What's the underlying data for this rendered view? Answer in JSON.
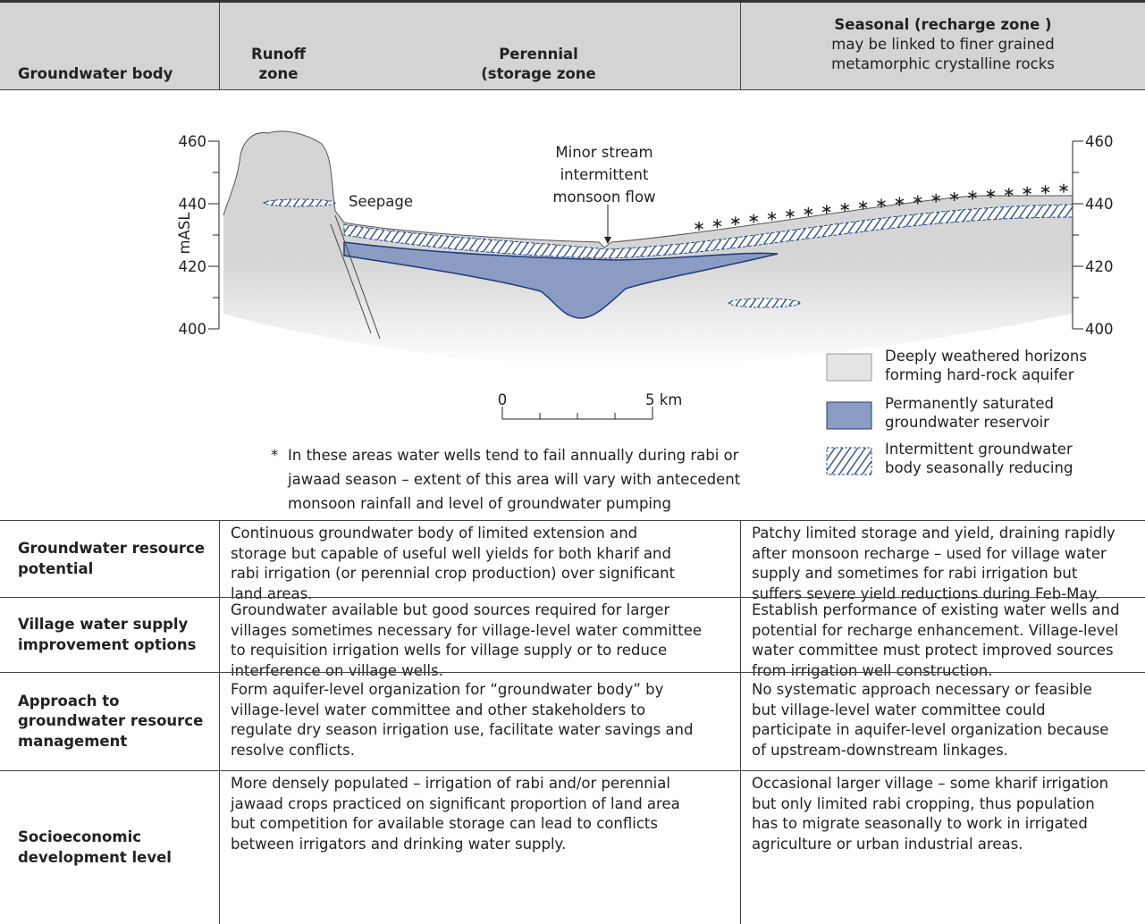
{
  "header": {
    "row_label": "Groundwater body",
    "runoff_zone": [
      "Runoff",
      "zone"
    ],
    "perennial_zone": [
      "Perennial",
      "(storage zone"
    ],
    "seasonal_zone": {
      "title": "Seasonal (recharge zone )",
      "note": [
        "may be linked to finer grained",
        "metamorphic crystalline rocks"
      ]
    }
  },
  "diagram": {
    "axis_label": "mASL",
    "ticks": [
      460,
      440,
      420,
      400
    ],
    "seepage": "Seepage",
    "stream": [
      "Minor stream",
      "intermittent",
      "monsoon flow"
    ],
    "scale": {
      "start": "0",
      "end": "5 km"
    },
    "legend": [
      [
        "Deeply weathered horizons",
        "forming hard-rock aquifer"
      ],
      [
        "Permanently saturated",
        "groundwater reservoir"
      ],
      [
        "Intermittent groundwater",
        "body seasonally reducing"
      ]
    ],
    "footnote": {
      "marker": "*",
      "text": [
        "In these areas water wells tend to fail annually during rabi or",
        "jawaad season – extent of this area will vary with antecedent",
        "monsoon rainfall and level of groundwater pumping"
      ]
    }
  },
  "rows": [
    {
      "label": [
        "Groundwater resource",
        "potential"
      ],
      "storage": [
        "Continuous groundwater body of limited extension and",
        "storage but capable of useful well yields for both kharif and",
        "rabi irrigation (or perennial crop production) over significant",
        "land areas."
      ],
      "recharge": [
        "Patchy limited storage and yield, draining rapidly",
        "after monsoon recharge – used for village water",
        "supply and sometimes for rabi irrigation but",
        "suffers severe yield reductions during Feb-May."
      ]
    },
    {
      "label": [
        "Village water supply",
        "improvement options"
      ],
      "storage": [
        "Groundwater available but good sources required for larger",
        "villages sometimes necessary for village-level water committee",
        "to requisition irrigation wells for village supply or to reduce",
        "interference on village wells."
      ],
      "recharge": [
        "Establish performance of existing water wells and",
        "potential for recharge enhancement. Village-level",
        "water committee must protect improved sources",
        "from irrigation well construction."
      ]
    },
    {
      "label": [
        "Approach to",
        "groundwater resource",
        "management"
      ],
      "storage": [
        "Form aquifer-level organization for “groundwater body” by",
        "village-level water committee and other stakeholders to",
        "regulate dry season irrigation use, facilitate water savings and",
        "resolve conflicts."
      ],
      "recharge": [
        "No systematic approach necessary or feasible",
        "but village-level water committee could",
        "participate in aquifer-level organization because",
        "of upstream-downstream linkages."
      ]
    },
    {
      "label": [
        "Socioeconomic",
        "development level"
      ],
      "storage": [
        "More densely populated – irrigation of rabi and/or perennial",
        "jawaad crops practiced on significant proportion of land area",
        "but competition for available storage can lead to conflicts",
        "between irrigators and drinking water supply."
      ],
      "recharge": [
        "Occasional larger village – some kharif irrigation",
        "but only limited rabi cropping, thus population",
        "has to migrate seasonally to work in irrigated",
        "agriculture or urban industrial areas."
      ]
    }
  ]
}
